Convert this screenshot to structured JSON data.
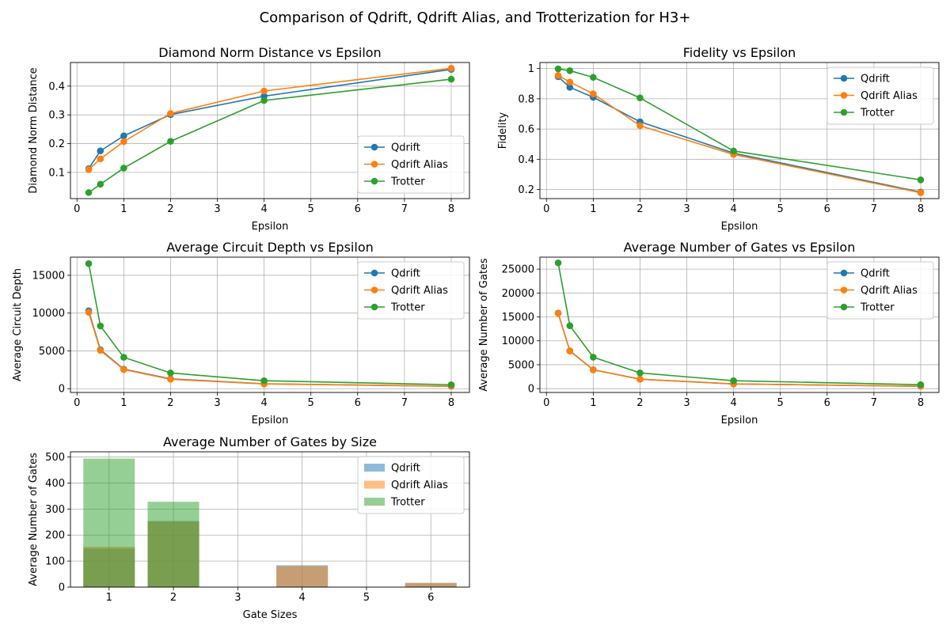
{
  "figure": {
    "suptitle": "Comparison of Qdrift, Qdrift Alias, and Trotterization for H3+",
    "colors": {
      "Qdrift": "#1f77b4",
      "Qdrift Alias": "#ff7f0e",
      "Trotter": "#2ca02c",
      "grid": "#b0b0b0"
    }
  },
  "chart_data": [
    {
      "type": "line",
      "title": "Diamond Norm Distance vs Epsilon",
      "xlabel": "Epsilon",
      "ylabel": "Diamond Norm Distance",
      "xlim": [
        -0.14,
        8.39
      ],
      "ylim": [
        0.009,
        0.482
      ],
      "xticks": [
        0,
        1,
        2,
        3,
        4,
        5,
        6,
        7,
        8
      ],
      "yticks": [
        0.1,
        0.2,
        0.3,
        0.4
      ],
      "grid": true,
      "legend_loc": "lower right",
      "x": [
        0.25,
        0.5,
        1,
        2,
        4,
        8
      ],
      "series": [
        {
          "name": "Qdrift",
          "values": [
            0.113,
            0.175,
            0.227,
            0.301,
            0.365,
            0.458
          ]
        },
        {
          "name": "Qdrift Alias",
          "values": [
            0.11,
            0.147,
            0.207,
            0.305,
            0.383,
            0.462
          ]
        },
        {
          "name": "Trotter",
          "values": [
            0.03,
            0.059,
            0.115,
            0.208,
            0.35,
            0.424
          ]
        }
      ]
    },
    {
      "type": "line",
      "title": "Fidelity vs Epsilon",
      "xlabel": "Epsilon",
      "ylabel": "Fidelity",
      "xlim": [
        -0.14,
        8.39
      ],
      "ylim": [
        0.14,
        1.04
      ],
      "xticks": [
        0,
        1,
        2,
        3,
        4,
        5,
        6,
        7,
        8
      ],
      "yticks": [
        0.2,
        0.4,
        0.6,
        0.8,
        1.0
      ],
      "grid": true,
      "legend_loc": "upper right",
      "x": [
        0.25,
        0.5,
        1,
        2,
        4,
        8
      ],
      "series": [
        {
          "name": "Qdrift",
          "values": [
            0.946,
            0.876,
            0.81,
            0.648,
            0.441,
            0.183
          ]
        },
        {
          "name": "Qdrift Alias",
          "values": [
            0.954,
            0.911,
            0.833,
            0.622,
            0.432,
            0.179
          ]
        },
        {
          "name": "Trotter",
          "values": [
            0.998,
            0.986,
            0.942,
            0.806,
            0.455,
            0.264
          ]
        }
      ]
    },
    {
      "type": "line",
      "title": "Average Circuit Depth vs Epsilon",
      "xlabel": "Epsilon",
      "ylabel": "Average Circuit Depth",
      "xlim": [
        -0.14,
        8.39
      ],
      "ylim": [
        -500,
        17400
      ],
      "xticks": [
        0,
        1,
        2,
        3,
        4,
        5,
        6,
        7,
        8
      ],
      "yticks": [
        0,
        5000,
        10000,
        15000
      ],
      "grid": true,
      "legend_loc": "upper right",
      "x": [
        0.25,
        0.5,
        1,
        2,
        4,
        8
      ],
      "series": [
        {
          "name": "Qdrift",
          "values": [
            10300,
            5150,
            2580,
            1300,
            650,
            330
          ]
        },
        {
          "name": "Qdrift Alias",
          "values": [
            10100,
            5050,
            2530,
            1250,
            630,
            320
          ]
        },
        {
          "name": "Trotter",
          "values": [
            16550,
            8300,
            4150,
            2080,
            1050,
            520
          ]
        }
      ]
    },
    {
      "type": "line",
      "title": "Average Number of Gates vs Epsilon",
      "xlabel": "Epsilon",
      "ylabel": "Average Number of Gates",
      "xlim": [
        -0.14,
        8.39
      ],
      "ylim": [
        -800,
        27500
      ],
      "xticks": [
        0,
        1,
        2,
        3,
        4,
        5,
        6,
        7,
        8
      ],
      "yticks": [
        0,
        5000,
        10000,
        15000,
        20000,
        25000
      ],
      "grid": true,
      "legend_loc": "upper right",
      "x": [
        0.25,
        0.5,
        1,
        2,
        4,
        8
      ],
      "series": [
        {
          "name": "Qdrift",
          "values": [
            15800,
            7900,
            3950,
            1980,
            990,
            500
          ]
        },
        {
          "name": "Qdrift Alias",
          "values": [
            15750,
            7850,
            3930,
            1960,
            980,
            490
          ]
        },
        {
          "name": "Trotter",
          "values": [
            26300,
            13150,
            6580,
            3290,
            1650,
            820
          ]
        }
      ]
    },
    {
      "type": "bar",
      "title": "Average Number of Gates by Size",
      "xlabel": "Gate Sizes",
      "ylabel": "Average Number of Gates",
      "xlim": [
        0.4,
        6.6
      ],
      "ylim": [
        0,
        520
      ],
      "xticks": [
        1,
        2,
        3,
        4,
        5,
        6
      ],
      "yticks": [
        0,
        100,
        200,
        300,
        400,
        500
      ],
      "grid": true,
      "legend_loc": "upper right",
      "categories": [
        1,
        2,
        3,
        4,
        5,
        6
      ],
      "series": [
        {
          "name": "Qdrift",
          "values": [
            148,
            254,
            0,
            84,
            0,
            16
          ]
        },
        {
          "name": "Qdrift Alias",
          "values": [
            155,
            252,
            0,
            80,
            0,
            16
          ]
        },
        {
          "name": "Trotter",
          "values": [
            494,
            328,
            0,
            0,
            0,
            0
          ]
        }
      ]
    }
  ]
}
